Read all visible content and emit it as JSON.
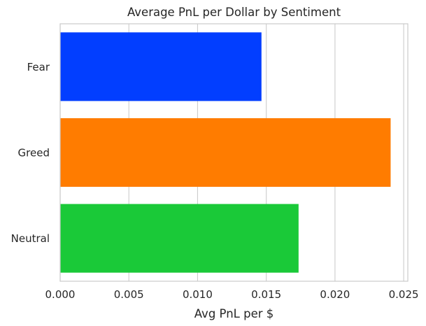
{
  "chart_data": {
    "type": "bar",
    "orientation": "horizontal",
    "title": "Average PnL per Dollar by Sentiment",
    "xlabel": "Avg PnL per $",
    "ylabel": "",
    "categories": [
      "Fear",
      "Greed",
      "Neutral"
    ],
    "values": [
      0.01465,
      0.02405,
      0.01735
    ],
    "colors": [
      "#023eff",
      "#ff7c00",
      "#1ac938"
    ],
    "xlim": [
      0,
      0.0253
    ],
    "xticks": [
      "0.000",
      "0.005",
      "0.010",
      "0.015",
      "0.020",
      "0.025"
    ],
    "grid": true,
    "legend": "none"
  }
}
